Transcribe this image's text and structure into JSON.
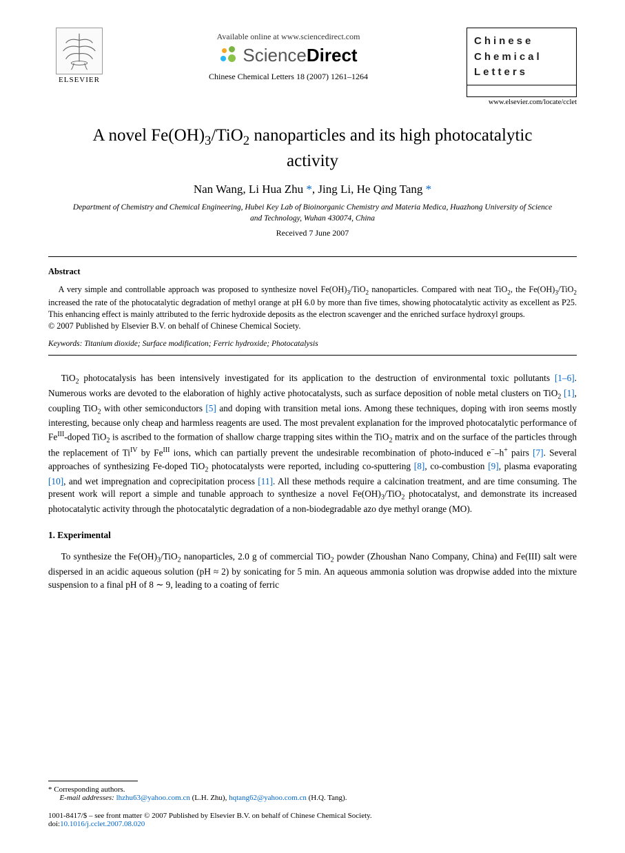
{
  "header": {
    "elsevier_label": "ELSEVIER",
    "available_online": "Available online at www.sciencedirect.com",
    "sd_sci": "Science",
    "sd_dir": "Direct",
    "sd_dot_colors": [
      "#f5a623",
      "#7cb342",
      "#29b6f6",
      "#8bc34a"
    ],
    "journal_ref": "Chinese Chemical Letters 18 (2007) 1261–1264",
    "journal_box_lines": [
      "Chinese",
      "Chemical",
      "Letters"
    ],
    "journal_url": "www.elsevier.com/locate/cclet"
  },
  "title_html": "A novel Fe(OH)<sub>3</sub>/TiO<sub>2</sub> nanoparticles and its high photocatalytic activity",
  "authors_html": "Nan Wang, Li Hua Zhu <span class=\"star\">*</span>, Jing Li, He Qing Tang <span class=\"star\">*</span>",
  "affiliation": "Department of Chemistry and Chemical Engineering, Hubei Key Lab of Bioinorganic Chemistry and Materia Medica, Huazhong University of Science and Technology, Wuhan 430074, China",
  "received": "Received 7 June 2007",
  "abstract": {
    "heading": "Abstract",
    "text_html": "A very simple and controllable approach was proposed to synthesize novel Fe(OH)<sub>3</sub>/TiO<sub>2</sub> nanoparticles. Compared with neat TiO<sub>2</sub>, the Fe(OH)<sub>3</sub>/TiO<sub>2</sub> increased the rate of the photocatalytic degradation of methyl orange at pH 6.0 by more than five times, showing photocatalytic activity as excellent as P25. This enhancing effect is mainly attributed to the ferric hydroxide deposits as the electron scavenger and the enriched surface hydroxyl groups.",
    "copyright": "© 2007 Published by Elsevier B.V. on behalf of Chinese Chemical Society."
  },
  "keywords": {
    "label": "Keywords:",
    "list": "Titanium dioxide; Surface modification; Ferric hydroxide; Photocatalysis"
  },
  "intro_html": "TiO<sub>2</sub> photocatalysis has been intensively investigated for its application to the destruction of environmental toxic pollutants <span class=\"ref\">[1–6]</span>. Numerous works are devoted to the elaboration of highly active photocatalysts, such as surface deposition of noble metal clusters on TiO<sub>2</sub> <span class=\"ref\">[1]</span>, coupling TiO<sub>2</sub> with other semiconductors <span class=\"ref\">[5]</span> and doping with transition metal ions. Among these techniques, doping with iron seems mostly interesting, because only cheap and harmless reagents are used. The most prevalent explanation for the improved photocatalytic performance of Fe<sup>III</sup>-doped TiO<sub>2</sub> is ascribed to the formation of shallow charge trapping sites within the TiO<sub>2</sub> matrix and on the surface of the particles through the replacement of Ti<sup>IV</sup> by Fe<sup>III</sup> ions, which can partially prevent the undesirable recombination of photo-induced e<sup>−</sup>–h<sup>+</sup> pairs <span class=\"ref\">[7]</span>. Several approaches of synthesizing Fe-doped TiO<sub>2</sub> photocatalysts were reported, including co-sputtering <span class=\"ref\">[8]</span>, co-combustion <span class=\"ref\">[9]</span>, plasma evaporating <span class=\"ref\">[10]</span>, and wet impregnation and coprecipitation process <span class=\"ref\">[11]</span>. All these methods require a calcination treatment, and are time consuming. The present work will report a simple and tunable approach to synthesize a novel Fe(OH)<sub>3</sub>/TiO<sub>2</sub> photocatalyst, and demonstrate its increased photocatalytic activity through the photocatalytic degradation of a non-biodegradable azo dye methyl orange (MO).",
  "section1": {
    "heading": "1. Experimental",
    "text_html": "To synthesize the Fe(OH)<sub>3</sub>/TiO<sub>2</sub> nanoparticles, 2.0 g of commercial TiO<sub>2</sub> powder (Zhoushan Nano Company, China) and Fe(III) salt were dispersed in an acidic aqueous solution (pH ≈ 2) by sonicating for 5 min. An aqueous ammonia solution was dropwise added into the mixture suspension to a final pH of 8 ∼ 9, leading to a coating of ferric"
  },
  "footer": {
    "corr": "* Corresponding authors.",
    "email_label": "E-mail addresses:",
    "email1": "lhzhu63@yahoo.com.cn",
    "email1_who": "(L.H. Zhu),",
    "email2": "hqtang62@yahoo.com.cn",
    "email2_who": "(H.Q. Tang).",
    "issn": "1001-8417/$ – see front matter © 2007 Published by Elsevier B.V. on behalf of Chinese Chemical Society.",
    "doi_label": "doi:",
    "doi": "10.1016/j.cclet.2007.08.020"
  },
  "colors": {
    "link": "#0066cc",
    "text": "#000000",
    "bg": "#ffffff"
  }
}
